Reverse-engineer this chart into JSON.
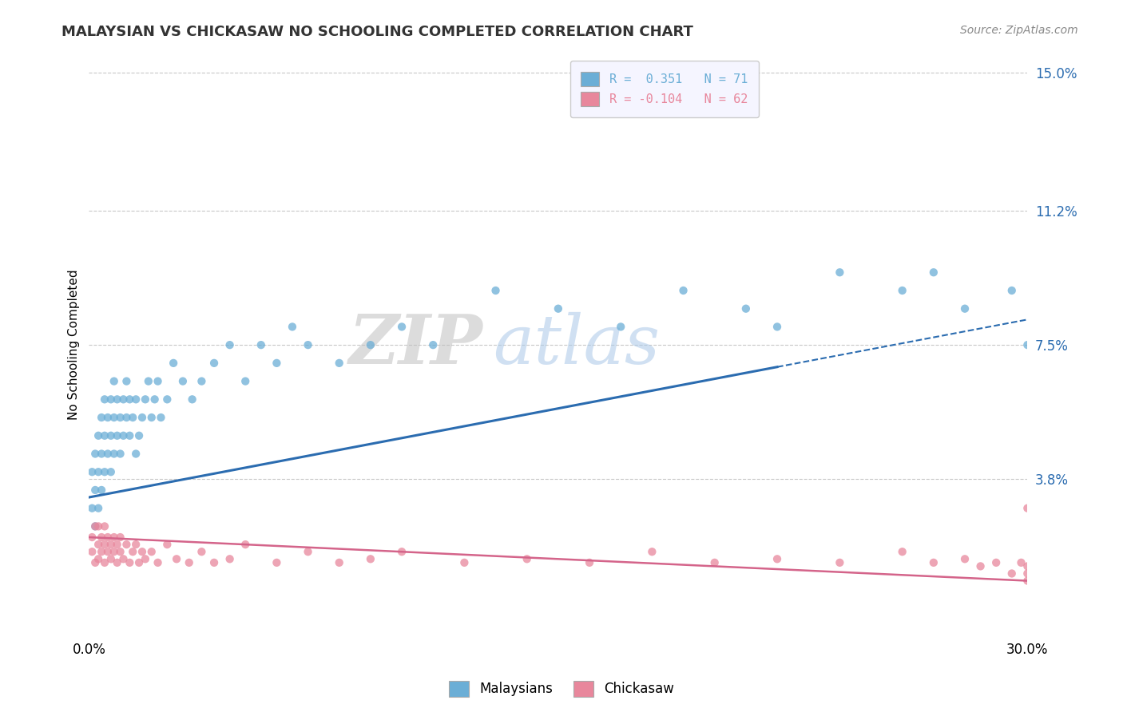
{
  "title": "MALAYSIAN VS CHICKASAW NO SCHOOLING COMPLETED CORRELATION CHART",
  "source_text": "Source: ZipAtlas.com",
  "ylabel": "No Schooling Completed",
  "watermark_zip": "ZIP",
  "watermark_atlas": "atlas",
  "xmin": 0.0,
  "xmax": 0.3,
  "ymin": -0.005,
  "ymax": 0.155,
  "ytick_vals": [
    0.038,
    0.075,
    0.112,
    0.15
  ],
  "ytick_labels": [
    "3.8%",
    "7.5%",
    "11.2%",
    "15.0%"
  ],
  "xtick_vals": [
    0.0,
    0.3
  ],
  "xtick_labels": [
    "0.0%",
    "30.0%"
  ],
  "legend_entries": [
    {
      "label": "R =  0.351   N = 71",
      "color": "#6baed6"
    },
    {
      "label": "R = -0.104   N = 62",
      "color": "#e8879c"
    }
  ],
  "malaysian_color": "#6baed6",
  "chickasaw_color": "#e8879c",
  "trend_malaysian_color": "#2b6cb0",
  "trend_chickasaw_color": "#d4648a",
  "background_color": "#ffffff",
  "grid_color": "#c8c8c8",
  "malaysian_R": 0.351,
  "malaysian_N": 71,
  "chickasaw_R": -0.104,
  "chickasaw_N": 62,
  "mal_trend_x0": 0.0,
  "mal_trend_y0": 0.033,
  "mal_trend_x1": 0.3,
  "mal_trend_y1": 0.082,
  "mal_trend_solid_end": 0.22,
  "chick_trend_x0": 0.0,
  "chick_trend_y0": 0.022,
  "chick_trend_x1": 0.3,
  "chick_trend_y1": 0.01,
  "malaysian_x": [
    0.001,
    0.001,
    0.002,
    0.002,
    0.002,
    0.003,
    0.003,
    0.003,
    0.004,
    0.004,
    0.004,
    0.005,
    0.005,
    0.005,
    0.006,
    0.006,
    0.007,
    0.007,
    0.007,
    0.008,
    0.008,
    0.008,
    0.009,
    0.009,
    0.01,
    0.01,
    0.011,
    0.011,
    0.012,
    0.012,
    0.013,
    0.013,
    0.014,
    0.015,
    0.015,
    0.016,
    0.017,
    0.018,
    0.019,
    0.02,
    0.021,
    0.022,
    0.023,
    0.025,
    0.027,
    0.03,
    0.033,
    0.036,
    0.04,
    0.045,
    0.05,
    0.055,
    0.06,
    0.065,
    0.07,
    0.08,
    0.09,
    0.1,
    0.11,
    0.13,
    0.15,
    0.17,
    0.19,
    0.21,
    0.22,
    0.24,
    0.26,
    0.27,
    0.28,
    0.295,
    0.3
  ],
  "malaysian_y": [
    0.03,
    0.04,
    0.035,
    0.045,
    0.025,
    0.04,
    0.05,
    0.03,
    0.045,
    0.055,
    0.035,
    0.05,
    0.04,
    0.06,
    0.045,
    0.055,
    0.04,
    0.06,
    0.05,
    0.055,
    0.045,
    0.065,
    0.05,
    0.06,
    0.055,
    0.045,
    0.06,
    0.05,
    0.055,
    0.065,
    0.05,
    0.06,
    0.055,
    0.06,
    0.045,
    0.05,
    0.055,
    0.06,
    0.065,
    0.055,
    0.06,
    0.065,
    0.055,
    0.06,
    0.07,
    0.065,
    0.06,
    0.065,
    0.07,
    0.075,
    0.065,
    0.075,
    0.07,
    0.08,
    0.075,
    0.07,
    0.075,
    0.08,
    0.075,
    0.09,
    0.085,
    0.08,
    0.09,
    0.085,
    0.08,
    0.095,
    0.09,
    0.095,
    0.085,
    0.09,
    0.075
  ],
  "chickasaw_x": [
    0.001,
    0.001,
    0.002,
    0.002,
    0.003,
    0.003,
    0.003,
    0.004,
    0.004,
    0.005,
    0.005,
    0.005,
    0.006,
    0.006,
    0.007,
    0.007,
    0.008,
    0.008,
    0.009,
    0.009,
    0.01,
    0.01,
    0.011,
    0.012,
    0.013,
    0.014,
    0.015,
    0.016,
    0.017,
    0.018,
    0.02,
    0.022,
    0.025,
    0.028,
    0.032,
    0.036,
    0.04,
    0.045,
    0.05,
    0.06,
    0.07,
    0.08,
    0.09,
    0.1,
    0.12,
    0.14,
    0.16,
    0.18,
    0.2,
    0.22,
    0.24,
    0.26,
    0.27,
    0.28,
    0.285,
    0.29,
    0.295,
    0.298,
    0.3,
    0.3,
    0.3,
    0.3
  ],
  "chickasaw_y": [
    0.018,
    0.022,
    0.015,
    0.025,
    0.02,
    0.016,
    0.025,
    0.018,
    0.022,
    0.015,
    0.02,
    0.025,
    0.018,
    0.022,
    0.016,
    0.02,
    0.018,
    0.022,
    0.015,
    0.02,
    0.018,
    0.022,
    0.016,
    0.02,
    0.015,
    0.018,
    0.02,
    0.015,
    0.018,
    0.016,
    0.018,
    0.015,
    0.02,
    0.016,
    0.015,
    0.018,
    0.015,
    0.016,
    0.02,
    0.015,
    0.018,
    0.015,
    0.016,
    0.018,
    0.015,
    0.016,
    0.015,
    0.018,
    0.015,
    0.016,
    0.015,
    0.018,
    0.015,
    0.016,
    0.014,
    0.015,
    0.012,
    0.015,
    0.014,
    0.012,
    0.03,
    0.01
  ]
}
